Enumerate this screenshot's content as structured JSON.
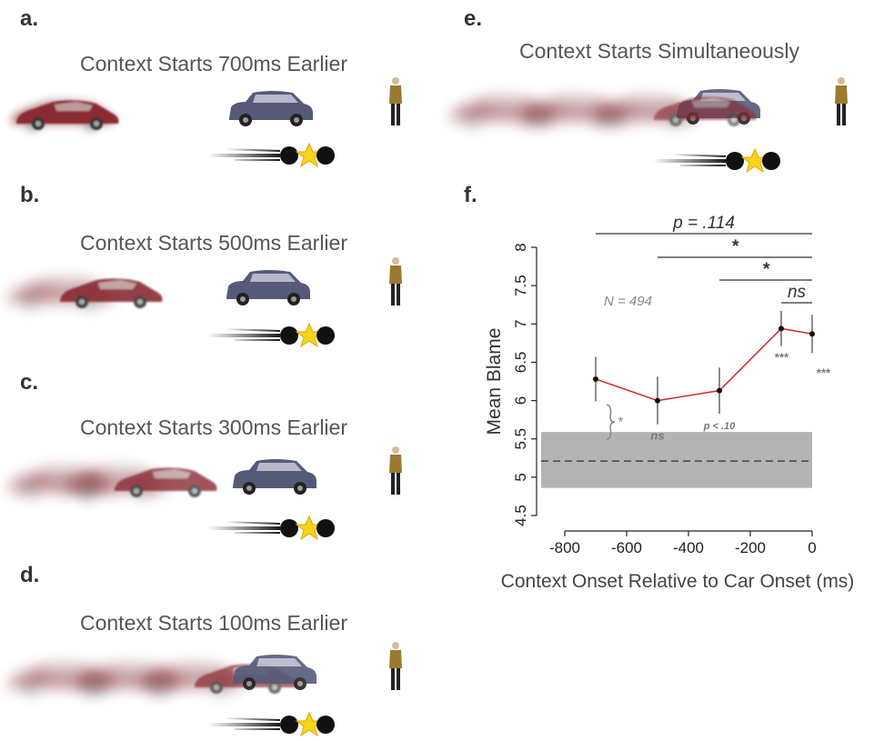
{
  "panels": [
    {
      "label": "a.",
      "title": "Context Starts 700ms Earlier"
    },
    {
      "label": "b.",
      "title": "Context Starts 500ms Earlier"
    },
    {
      "label": "c.",
      "title": "Context Starts 300ms Earlier"
    },
    {
      "label": "d.",
      "title": "Context Starts 100ms Earlier"
    },
    {
      "label": "e.",
      "title": "Context Starts Simultaneously"
    }
  ],
  "chart_label": "f.",
  "chart_data": {
    "type": "line",
    "xlabel": "Context Onset Relative to Car Onset (ms)",
    "ylabel": "Mean Blame",
    "x": [
      -700,
      -500,
      -300,
      -100,
      0
    ],
    "values": [
      6.28,
      6.0,
      6.13,
      6.94,
      6.87
    ],
    "errors": [
      0.29,
      0.31,
      0.3,
      0.23,
      0.25
    ],
    "color": "#d8262a",
    "point_labels": [
      null,
      "ns",
      "p < .10",
      "***",
      "***"
    ],
    "baseline": {
      "mean": 5.21,
      "lower": 4.86,
      "upper": 5.59
    },
    "baseline_comparison_label": "*",
    "sample_label": "N = 494",
    "comparisons": [
      {
        "from": -700,
        "to": 0,
        "label": "p = .114"
      },
      {
        "from": -500,
        "to": 0,
        "label": "*"
      },
      {
        "from": -300,
        "to": 0,
        "label": "*"
      },
      {
        "from": -100,
        "to": 0,
        "label": "ns"
      }
    ],
    "xlim": [
      -800,
      0
    ],
    "ylim": [
      4.5,
      8
    ],
    "xticks": [
      -800,
      -600,
      -400,
      -200,
      0
    ],
    "yticks": [
      4.5,
      5,
      5.5,
      6,
      6.5,
      7,
      7.5,
      8
    ]
  }
}
